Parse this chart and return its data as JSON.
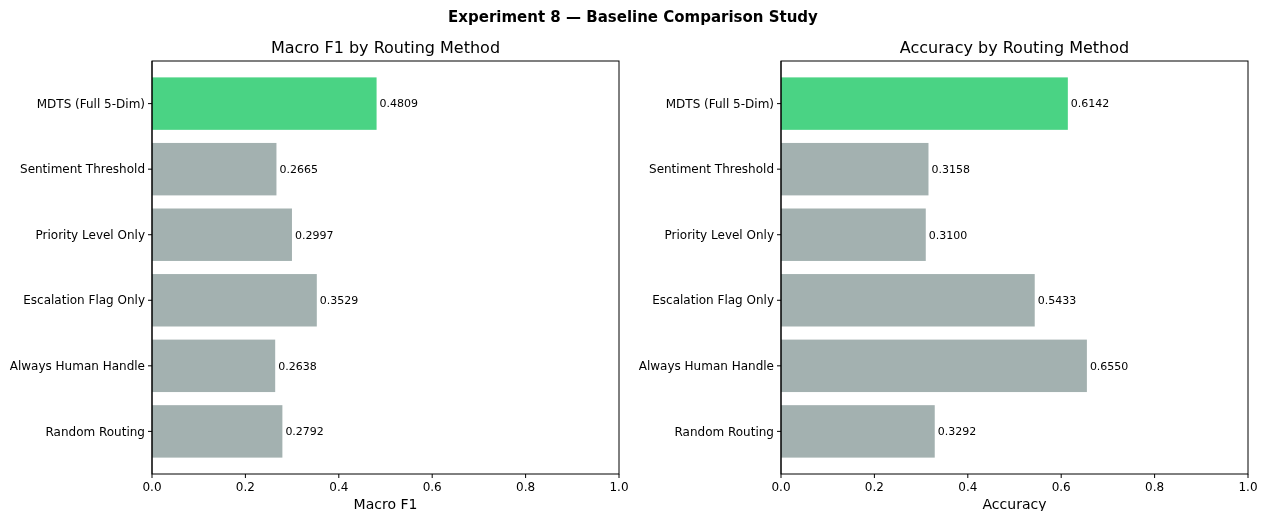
{
  "chart_data": [
    {
      "type": "bar",
      "orientation": "horizontal",
      "title": "Macro F1 by Routing Method",
      "xlabel": "Macro F1",
      "annotations": [
        "Experiment 8 — Baseline Comparison Study"
      ],
      "categories": [
        "MDTS (Full 5-Dim)",
        "Sentiment Threshold",
        "Priority Level Only",
        "Escalation Flag Only",
        "Always Human Handle",
        "Random Routing"
      ],
      "values": [
        0.4809,
        0.2665,
        0.2997,
        0.3529,
        0.2638,
        0.2792
      ],
      "value_labels": [
        "0.4809",
        "0.2665",
        "0.2997",
        "0.3529",
        "0.2638",
        "0.2792"
      ],
      "colors": [
        "#4ad384",
        "#a3b1b0",
        "#a3b1b0",
        "#a3b1b0",
        "#a3b1b0",
        "#a3b1b0"
      ],
      "xlim": [
        0,
        1
      ],
      "xticks": [
        {
          "value": 0,
          "label": "0.0"
        },
        {
          "value": 0.2,
          "label": "0.2"
        },
        {
          "value": 0.4,
          "label": "0.4"
        },
        {
          "value": 0.6,
          "label": "0.6"
        },
        {
          "value": 0.8,
          "label": "0.8"
        },
        {
          "value": 1,
          "label": "1.0"
        }
      ]
    },
    {
      "type": "bar",
      "orientation": "horizontal",
      "title": "Accuracy by Routing Method",
      "xlabel": "Accuracy",
      "categories": [
        "MDTS (Full 5-Dim)",
        "Sentiment Threshold",
        "Priority Level Only",
        "Escalation Flag Only",
        "Always Human Handle",
        "Random Routing"
      ],
      "values": [
        0.6142,
        0.3158,
        0.31,
        0.5433,
        0.655,
        0.3292
      ],
      "value_labels": [
        "0.6142",
        "0.3158",
        "0.3100",
        "0.5433",
        "0.6550",
        "0.3292"
      ],
      "colors": [
        "#4ad384",
        "#a3b1b0",
        "#a3b1b0",
        "#a3b1b0",
        "#a3b1b0",
        "#a3b1b0"
      ],
      "xlim": [
        0,
        1
      ],
      "xticks": [
        {
          "value": 0,
          "label": "0.0"
        },
        {
          "value": 0.2,
          "label": "0.2"
        },
        {
          "value": 0.4,
          "label": "0.4"
        },
        {
          "value": 0.6,
          "label": "0.6"
        },
        {
          "value": 0.8,
          "label": "0.8"
        },
        {
          "value": 1,
          "label": "1.0"
        }
      ]
    }
  ]
}
